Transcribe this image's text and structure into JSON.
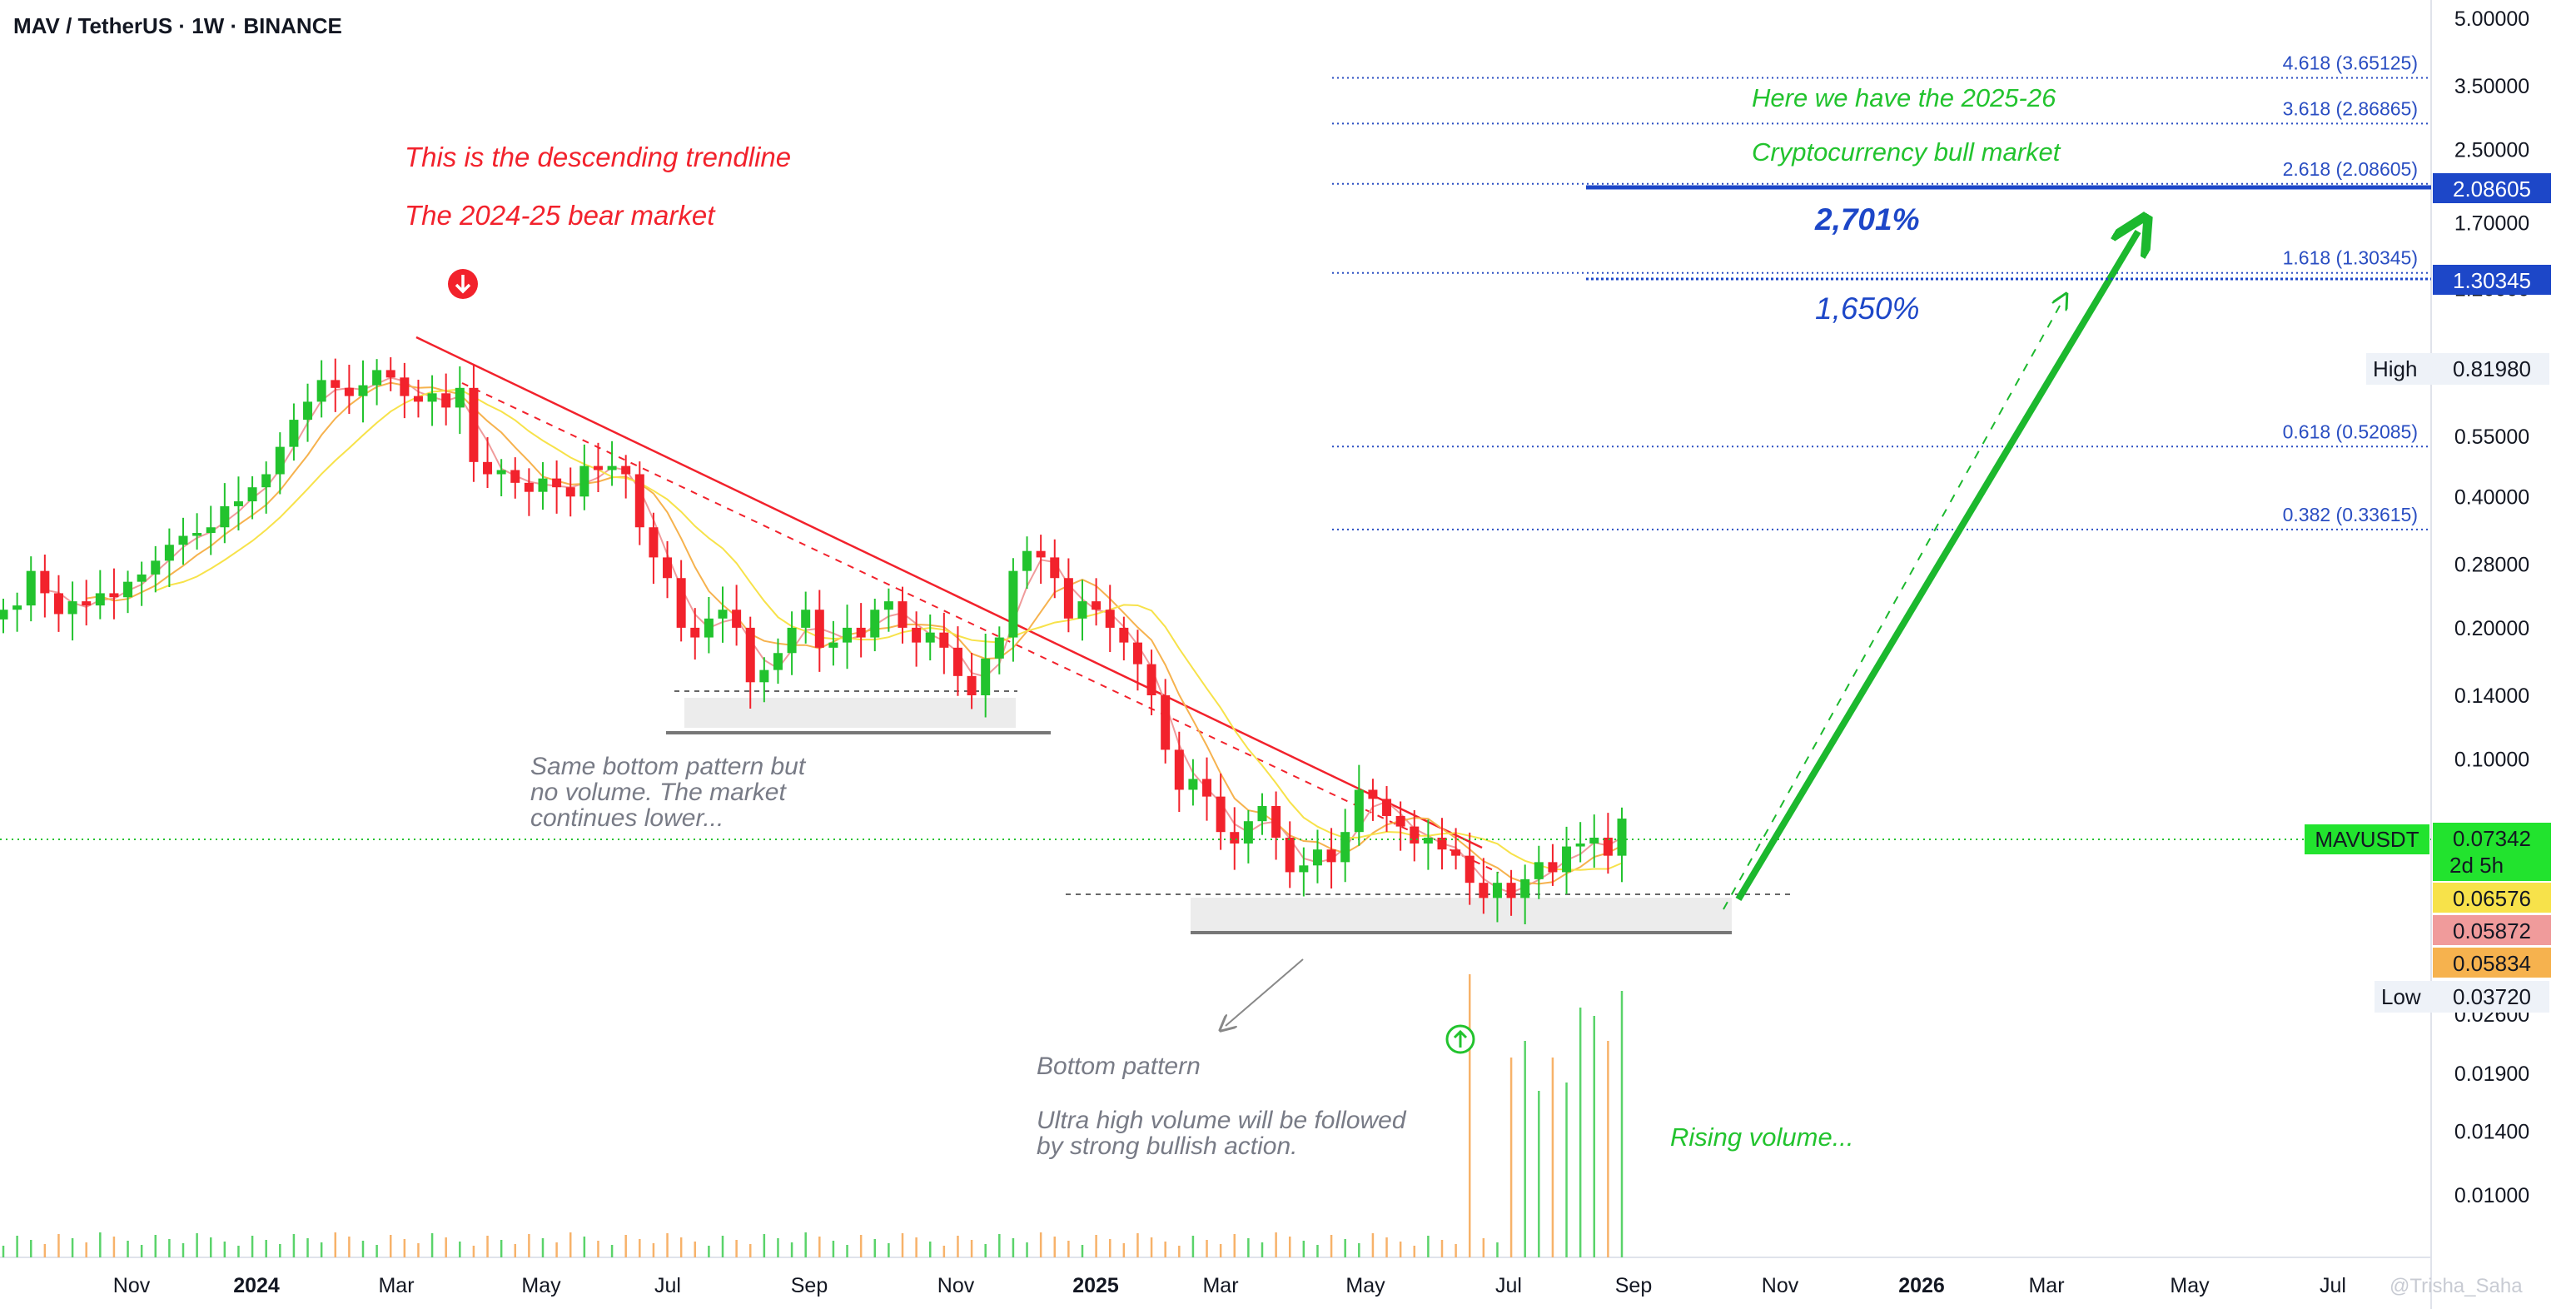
{
  "header": {
    "title": "MAV / TetherUS · 1W · BINANCE"
  },
  "chart_data": {
    "type": "candlestick",
    "symbol": "MAVUSDT",
    "scale": "log",
    "ylim": [
      0.0085,
      5.0
    ],
    "y_ticks": [
      "5.00000",
      "3.50000",
      "2.50000",
      "1.70000",
      "1.20000",
      "0.81980",
      "0.55000",
      "0.40000",
      "0.28000",
      "0.20000",
      "0.14000",
      "0.10000",
      "0.07342",
      "0.02600",
      "0.01900",
      "0.01400",
      "0.01000"
    ],
    "x_ticks": [
      {
        "label": "Nov",
        "bold": false
      },
      {
        "label": "2024",
        "bold": true
      },
      {
        "label": "Mar",
        "bold": false
      },
      {
        "label": "May",
        "bold": false
      },
      {
        "label": "Jul",
        "bold": false
      },
      {
        "label": "Sep",
        "bold": false
      },
      {
        "label": "Nov",
        "bold": false
      },
      {
        "label": "2025",
        "bold": true
      },
      {
        "label": "Mar",
        "bold": false
      },
      {
        "label": "May",
        "bold": false
      },
      {
        "label": "Jul",
        "bold": false
      },
      {
        "label": "Sep",
        "bold": false
      },
      {
        "label": "Nov",
        "bold": false
      },
      {
        "label": "2026",
        "bold": true
      },
      {
        "label": "Mar",
        "bold": false
      },
      {
        "label": "May",
        "bold": false
      },
      {
        "label": "Jul",
        "bold": false
      }
    ],
    "candles_close": [
      0.22,
      0.225,
      0.27,
      0.24,
      0.215,
      0.23,
      0.225,
      0.24,
      0.235,
      0.255,
      0.265,
      0.285,
      0.31,
      0.325,
      0.33,
      0.34,
      0.38,
      0.39,
      0.42,
      0.45,
      0.52,
      0.6,
      0.66,
      0.74,
      0.71,
      0.68,
      0.72,
      0.78,
      0.75,
      0.68,
      0.66,
      0.69,
      0.64,
      0.71,
      0.48,
      0.45,
      0.46,
      0.43,
      0.41,
      0.44,
      0.42,
      0.4,
      0.47,
      0.46,
      0.47,
      0.45,
      0.34,
      0.29,
      0.26,
      0.2,
      0.19,
      0.21,
      0.22,
      0.2,
      0.15,
      0.16,
      0.175,
      0.2,
      0.22,
      0.18,
      0.185,
      0.2,
      0.19,
      0.22,
      0.23,
      0.2,
      0.185,
      0.195,
      0.18,
      0.155,
      0.14,
      0.17,
      0.19,
      0.27,
      0.3,
      0.29,
      0.26,
      0.21,
      0.23,
      0.22,
      0.2,
      0.185,
      0.165,
      0.14,
      0.105,
      0.085,
      0.09,
      0.082,
      0.068,
      0.064,
      0.072,
      0.078,
      0.066,
      0.055,
      0.057,
      0.062,
      0.058,
      0.068,
      0.085,
      0.081,
      0.074,
      0.07,
      0.064,
      0.066,
      0.062,
      0.06,
      0.052,
      0.048,
      0.052,
      0.048,
      0.053,
      0.058,
      0.055,
      0.063,
      0.064,
      0.066,
      0.06,
      0.073
    ],
    "current_price": "0.07342",
    "countdown": "2d 5h",
    "price_badges": [
      {
        "name": "ma-fast",
        "value": "0.06576",
        "color": "#f7e24a"
      },
      {
        "name": "ma-mid",
        "value": "0.05872",
        "color": "#f09b9b"
      },
      {
        "name": "ma-slow",
        "value": "0.05834",
        "color": "#f6b24e"
      }
    ],
    "high": {
      "label": "High",
      "value": "0.81980"
    },
    "low": {
      "label": "Low",
      "value": "0.03720"
    },
    "fib_levels": [
      {
        "level": "4.618",
        "price": 3.65125,
        "label": "4.618 (3.65125)"
      },
      {
        "level": "3.618",
        "price": 2.86865,
        "label": "3.618 (2.86865)"
      },
      {
        "level": "2.618",
        "price": 2.08605,
        "label": "2.618 (2.08605)"
      },
      {
        "level": "1.618",
        "price": 1.30345,
        "label": "1.618 (1.30345)"
      },
      {
        "level": "0.618",
        "price": 0.52085,
        "label": "0.618 (0.52085)"
      },
      {
        "level": "0.382",
        "price": 0.33615,
        "label": "0.382 (0.33615)"
      }
    ],
    "target_badges": [
      "2.08605",
      "1.30345"
    ],
    "annotations": {
      "bear1": "This is the descending trendline",
      "bear2": "The 2024-25 bear market",
      "bull1": "Here we have the 2025-26",
      "bull2": "Cryptocurrency bull market",
      "pct1": "2,701%",
      "pct2": "1,650%",
      "same_bottom": [
        "Same bottom pattern but",
        "no volume. The market",
        "continues lower..."
      ],
      "bottom_pattern": "Bottom pattern",
      "ultra_volume": [
        "Ultra high volume will be followed",
        "by strong bullish action."
      ],
      "rising_volume": "Rising volume..."
    },
    "watermark": "@Trisha_Saha",
    "colors": {
      "up": "#22c32e",
      "down": "#f2222c",
      "fib": "#2a4ec2",
      "target": "#1d47c8",
      "arrow": "#1cb82e"
    }
  }
}
